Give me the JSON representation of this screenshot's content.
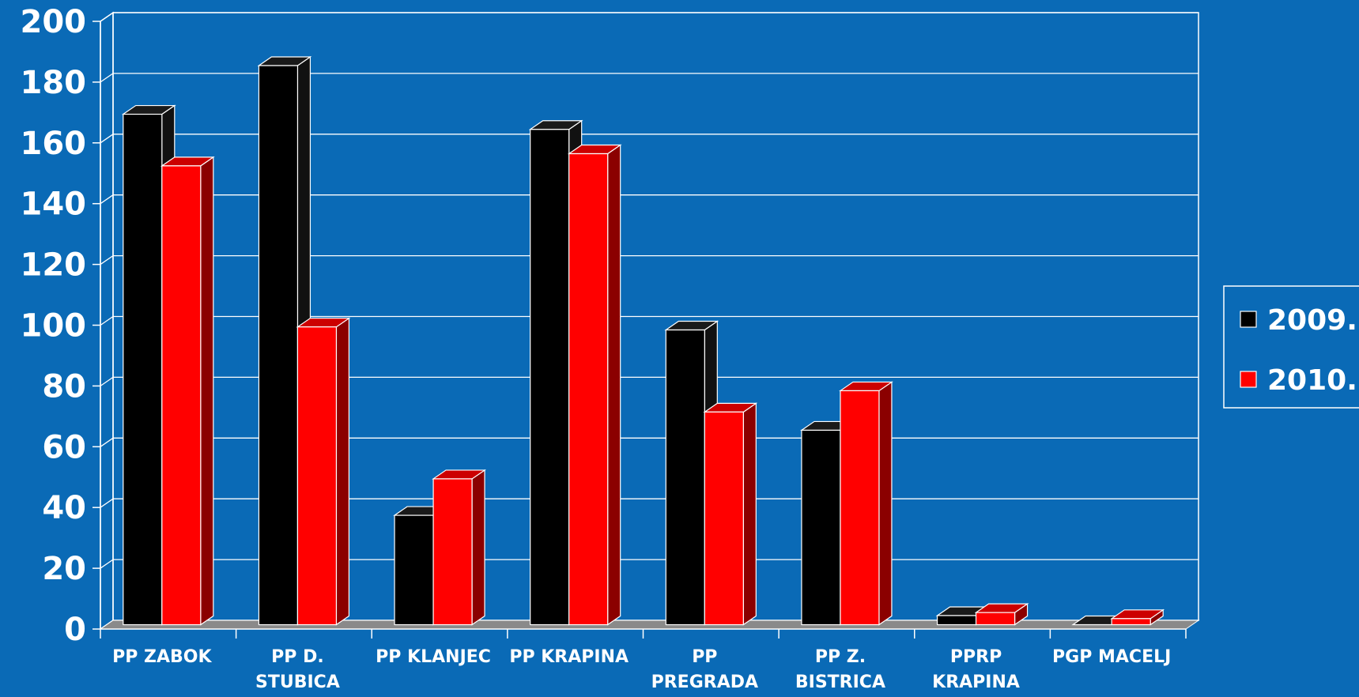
{
  "colors": {
    "background": "#0a6ab6",
    "series_2009_front": "#000000",
    "series_2009_side": "#111111",
    "series_2009_top": "#1a1a1a",
    "series_2010_front": "#ff0000",
    "series_2010_side": "#8b0000",
    "series_2010_top": "#cc0000",
    "floor": "#8a8a8a",
    "grid": "#ffffff"
  },
  "chart_data": {
    "type": "bar",
    "title": "",
    "xlabel": "",
    "ylabel": "",
    "ylim": [
      0,
      200
    ],
    "yticks": [
      "0",
      "20",
      "40",
      "60",
      "80",
      "100",
      "120",
      "140",
      "160",
      "180",
      "200"
    ],
    "categories": [
      [
        "PP ZABOK"
      ],
      [
        "PP D.",
        "STUBICA"
      ],
      [
        "PP KLANJEC"
      ],
      [
        "PP KRAPINA"
      ],
      [
        "PP",
        "PREGRADA"
      ],
      [
        "PP Z.",
        "BISTRICA"
      ],
      [
        "PPRP",
        "KRAPINA"
      ],
      [
        "PGP MACELJ"
      ]
    ],
    "series": [
      {
        "name": "2009.",
        "values": [
          168,
          184,
          36,
          163,
          97,
          64,
          3,
          0
        ]
      },
      {
        "name": "2010.",
        "values": [
          151,
          98,
          48,
          155,
          70,
          77,
          4,
          2
        ]
      }
    ],
    "grid": true,
    "legend": "right"
  }
}
